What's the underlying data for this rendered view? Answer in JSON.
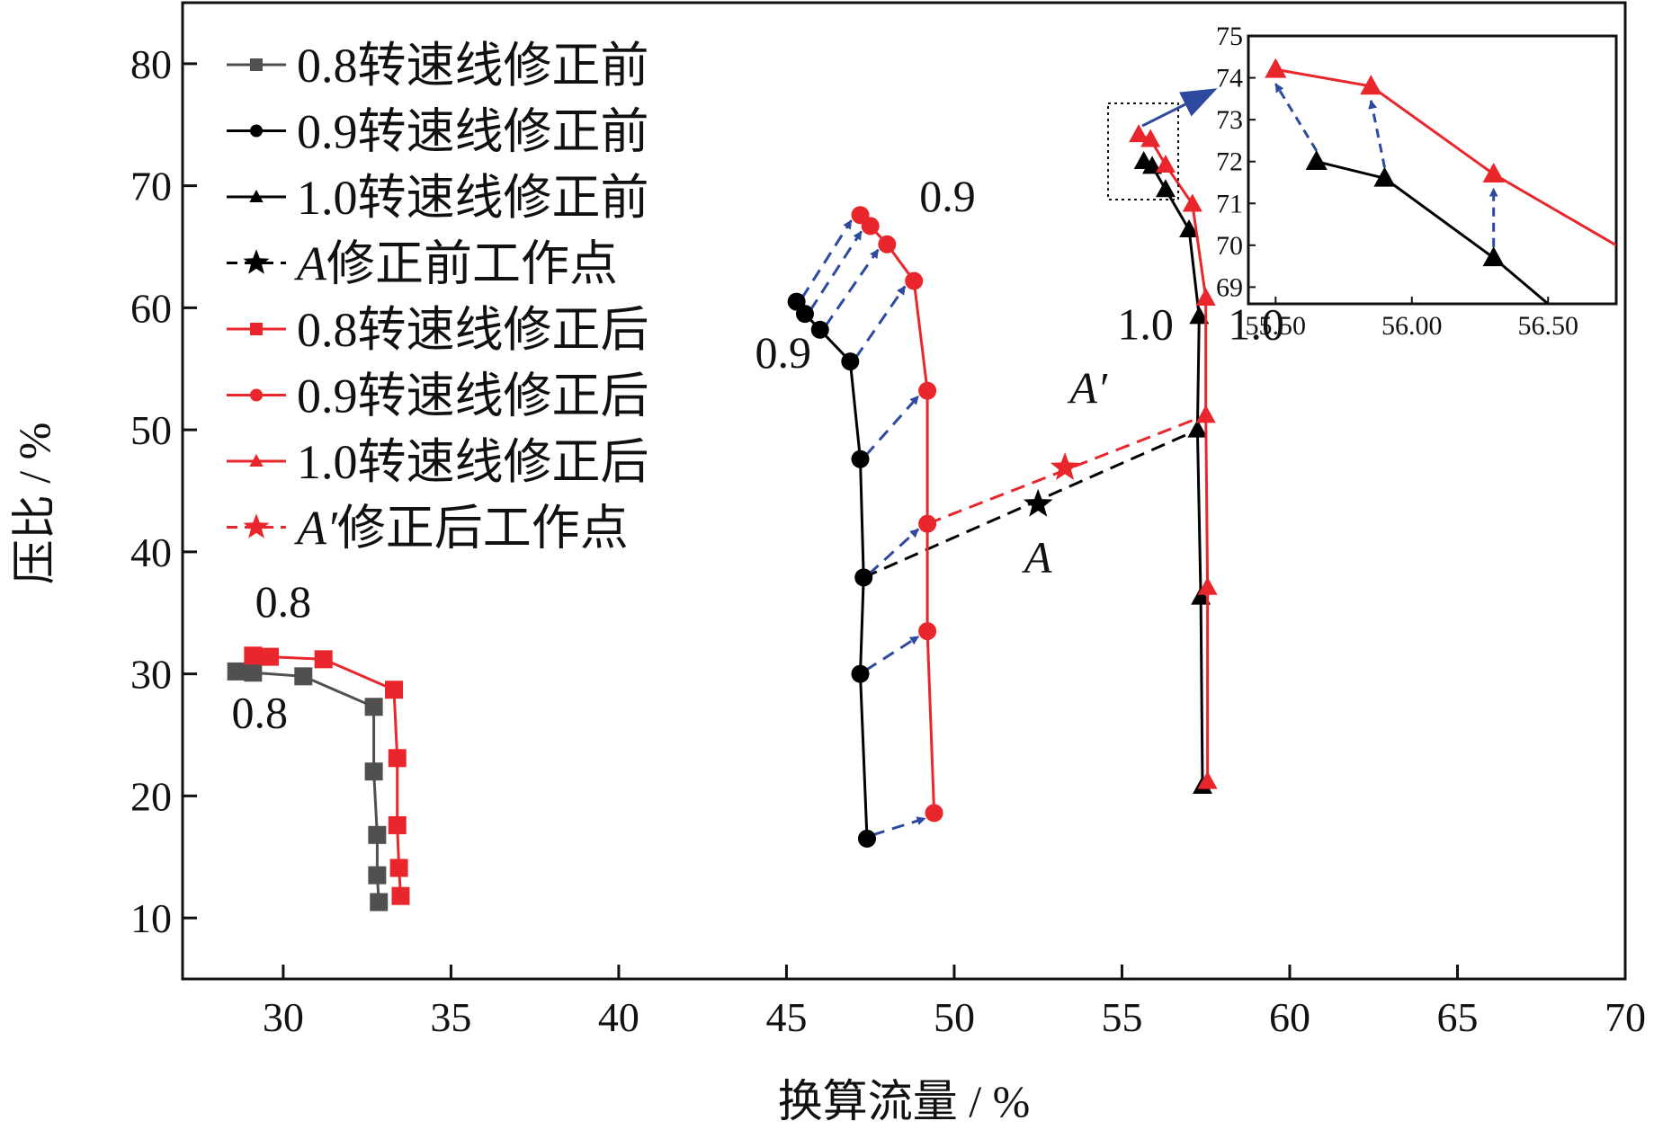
{
  "chart_data": {
    "type": "line",
    "xlabel": "换算流量 / %",
    "ylabel": "压比 / %",
    "xlim": [
      27,
      70
    ],
    "ylim": [
      5,
      85
    ],
    "xticks": [
      "30",
      "35",
      "40",
      "45",
      "50",
      "55",
      "60",
      "65",
      "70"
    ],
    "yticks": [
      "10",
      "20",
      "30",
      "40",
      "50",
      "60",
      "70",
      "80"
    ],
    "grid": false,
    "legend_position": "top-left",
    "legend_labels": [
      "0.8转速线修正前",
      "0.9转速线修正前",
      "1.0转速线修正前",
      "修正前工作点",
      "0.8转速线修正后",
      "0.9转速线修正后",
      "1.0转速线修正后",
      "修正后工作点"
    ],
    "legend_prefixes": [
      "",
      "",
      "",
      "A",
      "",
      "",
      "",
      "A′"
    ],
    "colors": {
      "before_08": "#505050",
      "before": "#000000",
      "after": "#e8262b",
      "correction_arrow": "#2e4a9e"
    },
    "series": [
      {
        "name": "0.8转速线修正前",
        "marker": "square",
        "color": "#505050",
        "x": [
          28.6,
          29.1,
          30.6,
          32.7,
          32.7,
          32.8,
          32.8,
          32.85
        ],
        "y": [
          30.2,
          30.1,
          29.8,
          27.3,
          22.0,
          16.8,
          13.5,
          11.3
        ]
      },
      {
        "name": "0.9转速线修正前",
        "marker": "circle",
        "color": "#000000",
        "x": [
          45.3,
          45.55,
          46.0,
          46.9,
          47.2,
          47.3,
          47.2,
          47.4
        ],
        "y": [
          60.5,
          59.5,
          58.2,
          55.6,
          47.6,
          37.9,
          30.0,
          16.5
        ]
      },
      {
        "name": "1.0转速线修正前",
        "marker": "triangle",
        "color": "#000000",
        "x": [
          55.65,
          55.9,
          56.3,
          57.0,
          57.3,
          57.25,
          57.35,
          57.4
        ],
        "y": [
          72.0,
          71.6,
          69.7,
          66.4,
          59.3,
          50.0,
          36.3,
          20.8
        ]
      },
      {
        "name": "修正前工作点",
        "marker": "star",
        "color": "#000000",
        "x": [
          52.5
        ],
        "y": [
          43.9
        ]
      },
      {
        "name": "0.8转速线修正后",
        "marker": "square",
        "color": "#e8262b",
        "x": [
          29.1,
          29.6,
          31.2,
          33.3,
          33.4,
          33.4,
          33.45,
          33.5
        ],
        "y": [
          31.5,
          31.4,
          31.2,
          28.7,
          23.1,
          17.6,
          14.1,
          11.8
        ]
      },
      {
        "name": "0.9转速线修正后",
        "marker": "circle",
        "color": "#e8262b",
        "x": [
          47.2,
          47.5,
          48.0,
          48.8,
          49.2,
          49.2,
          49.2,
          49.4
        ],
        "y": [
          67.6,
          66.7,
          65.2,
          62.2,
          53.2,
          42.3,
          33.5,
          18.6
        ]
      },
      {
        "name": "1.0转速线修正后",
        "marker": "triangle",
        "color": "#e8262b",
        "x": [
          55.5,
          55.85,
          56.3,
          57.1,
          57.5,
          57.5,
          57.55,
          57.55
        ],
        "y": [
          74.2,
          73.8,
          71.7,
          68.5,
          60.8,
          51.2,
          37.1,
          21.2
        ]
      },
      {
        "name": "修正后工作点",
        "marker": "star",
        "color": "#e8262b",
        "x": [
          53.3
        ],
        "y": [
          46.9
        ]
      }
    ],
    "operating_line_before": {
      "x": [
        47.3,
        57.25
      ],
      "y": [
        37.9,
        50.0
      ]
    },
    "operating_line_after": {
      "x": [
        49.2,
        57.5
      ],
      "y": [
        42.3,
        51.2
      ]
    },
    "correction_arrows": [
      {
        "from": [
          45.3,
          60.5
        ],
        "to": [
          47.2,
          67.6
        ]
      },
      {
        "from": [
          45.55,
          59.5
        ],
        "to": [
          47.5,
          66.7
        ]
      },
      {
        "from": [
          46.0,
          58.2
        ],
        "to": [
          48.0,
          65.2
        ]
      },
      {
        "from": [
          46.9,
          55.6
        ],
        "to": [
          48.8,
          62.2
        ]
      },
      {
        "from": [
          47.2,
          47.6
        ],
        "to": [
          49.2,
          53.2
        ]
      },
      {
        "from": [
          47.3,
          37.9
        ],
        "to": [
          49.2,
          42.3
        ]
      },
      {
        "from": [
          47.2,
          30.0
        ],
        "to": [
          49.2,
          33.5
        ]
      },
      {
        "from": [
          47.4,
          16.5
        ],
        "to": [
          49.4,
          18.6
        ]
      }
    ],
    "annotations": [
      {
        "text": "0.8",
        "x": 30.0,
        "y": 34.7
      },
      {
        "text": "0.8",
        "x": 29.3,
        "y": 25.6
      },
      {
        "text": "0.9",
        "x": 49.8,
        "y": 67.9
      },
      {
        "text": "0.9",
        "x": 44.9,
        "y": 55.1
      },
      {
        "text": "1.0",
        "x": 55.7,
        "y": 57.4
      },
      {
        "text": "1.0",
        "x": 59.0,
        "y": 57.4
      },
      {
        "text": "A′",
        "x": 54.0,
        "y": 52.2
      },
      {
        "text": "A",
        "x": 52.5,
        "y": 38.3
      }
    ],
    "inset": {
      "xlim": [
        55.4,
        56.75
      ],
      "ylim": [
        68.6,
        75.0
      ],
      "xticks": [
        "55.50",
        "56.00",
        "56.50"
      ],
      "yticks": [
        "69",
        "70",
        "71",
        "72",
        "73",
        "74",
        "75"
      ],
      "before": {
        "x": [
          55.65,
          55.9,
          56.3,
          56.5
        ],
        "y": [
          72.0,
          71.6,
          69.7,
          68.6
        ]
      },
      "after": {
        "x": [
          55.5,
          55.85,
          56.3,
          56.75
        ],
        "y": [
          74.2,
          73.8,
          71.7,
          70.0
        ]
      },
      "arrows": [
        {
          "from": [
            55.65,
            72.0
          ],
          "to": [
            55.5,
            74.2
          ]
        },
        {
          "from": [
            55.9,
            71.6
          ],
          "to": [
            55.85,
            73.8
          ]
        },
        {
          "from": [
            56.3,
            69.7
          ],
          "to": [
            56.3,
            71.7
          ]
        }
      ]
    }
  }
}
